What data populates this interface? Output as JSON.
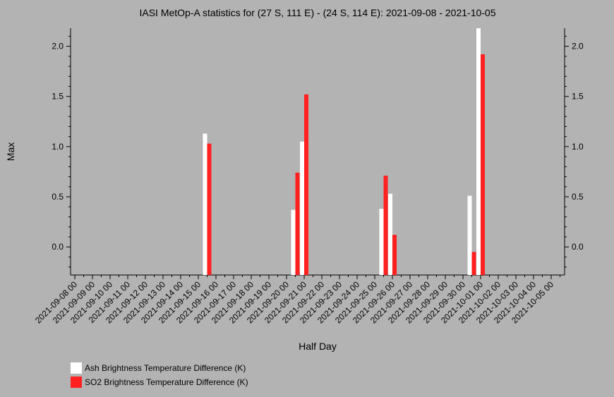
{
  "chart_data": {
    "type": "bar",
    "title": "IASI MetOp-A statistics for (27 S, 111 E) - (24 S, 114 E): 2021-09-08 - 2021-10-05",
    "xlabel": "Half Day",
    "ylabel": "Max",
    "ylim": [
      -0.28,
      2.18
    ],
    "yticks": [
      0.0,
      0.5,
      1.0,
      1.5,
      2.0
    ],
    "ytick_labels": [
      "0.0",
      "0.5",
      "1.0",
      "1.5",
      "2.0"
    ],
    "x_start": "2021-09-08 00",
    "x_end": "2021-10-05 12",
    "categories": [
      "2021-09-08 00",
      "2021-09-09 00",
      "2021-09-10 00",
      "2021-09-11 00",
      "2021-09-12 00",
      "2021-09-13 00",
      "2021-09-14 00",
      "2021-09-15 00",
      "2021-09-16 00",
      "2021-09-17 00",
      "2021-09-18 00",
      "2021-09-19 00",
      "2021-09-20 00",
      "2021-09-21 00",
      "2021-09-22 00",
      "2021-09-23 00",
      "2021-09-24 00",
      "2021-09-25 00",
      "2021-09-26 00",
      "2021-09-27 00",
      "2021-09-28 00",
      "2021-09-29 00",
      "2021-09-30 00",
      "2021-10-01 00",
      "2021-10-02 00",
      "2021-10-03 00",
      "2021-10-04 00",
      "2021-10-05 00"
    ],
    "legend_position": "bottom-left",
    "series": [
      {
        "name": "Ash Brightness Temperature Difference (K)",
        "color": "#ffffff",
        "points": [
          {
            "x": "2021-09-15 12",
            "y": 1.13
          },
          {
            "x": "2021-09-20 12",
            "y": 0.37
          },
          {
            "x": "2021-09-21 00",
            "y": 1.05
          },
          {
            "x": "2021-09-25 12",
            "y": 0.38
          },
          {
            "x": "2021-09-26 00",
            "y": 0.53
          },
          {
            "x": "2021-09-30 12",
            "y": 0.51
          },
          {
            "x": "2021-10-01 00",
            "y": 2.18
          }
        ]
      },
      {
        "name": "SO2 Brightness Temperature Difference (K)",
        "color": "#ff2020",
        "points": [
          {
            "x": "2021-09-15 12",
            "y": 1.03
          },
          {
            "x": "2021-09-20 12",
            "y": 0.74
          },
          {
            "x": "2021-09-21 00",
            "y": 1.52
          },
          {
            "x": "2021-09-25 12",
            "y": 0.71
          },
          {
            "x": "2021-09-26 00",
            "y": 0.12
          },
          {
            "x": "2021-09-30 12",
            "y": -0.05
          },
          {
            "x": "2021-10-01 00",
            "y": 1.92
          }
        ]
      }
    ]
  }
}
